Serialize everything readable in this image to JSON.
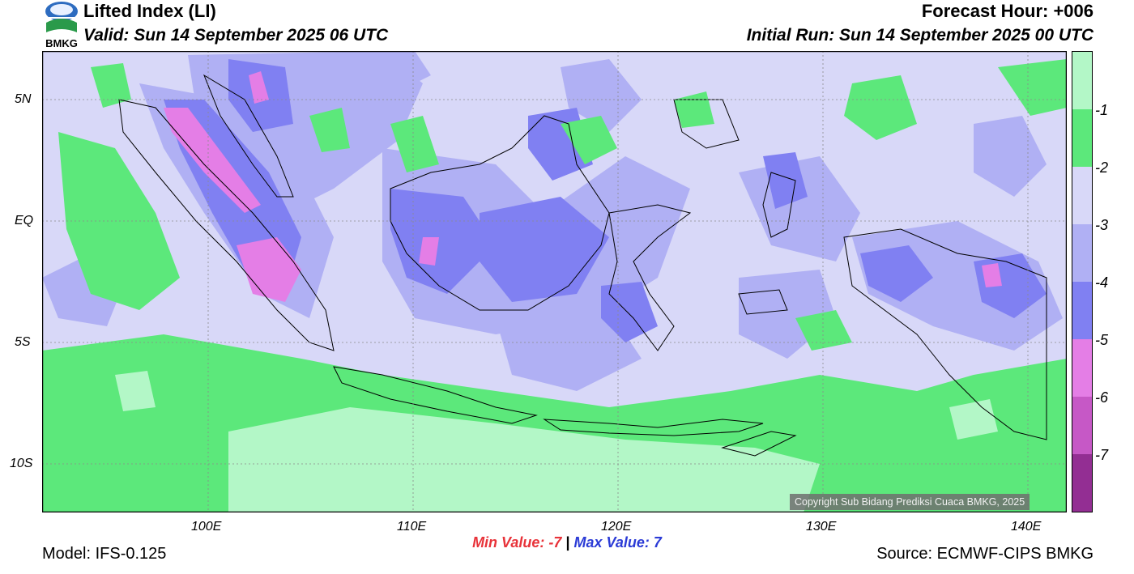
{
  "header": {
    "title": "Lifted Index (LI)",
    "valid": "Valid: Sun 14 September 2025 06 UTC",
    "forecast_hour": "Forecast Hour: +006",
    "initial_run": "Initial Run: Sun 14 September 2025 00 UTC"
  },
  "logo": {
    "text": "BMKG",
    "icon": "bmkg-logo-icon"
  },
  "map": {
    "lat_labels": [
      "5N",
      "EQ",
      "5S",
      "10S"
    ],
    "lon_labels": [
      "100E",
      "110E",
      "120E",
      "130E",
      "140E"
    ],
    "copyright": "Copyright Sub Bidang Prediksi Cuaca BMKG, 2025",
    "colors": {
      "lt_m1": "#b3f7c7",
      "m1_m2": "#5ce87b",
      "m2_m3": "#d8d8f8",
      "m3_m4": "#b0b0f4",
      "m4_m5": "#8080f2",
      "m5_m6": "#e47ee6",
      "m6_m7": "#c658c6",
      "gt_m7": "#932e93"
    }
  },
  "colorbar": {
    "labels": [
      "-1",
      "-2",
      "-3",
      "-4",
      "-5",
      "-6",
      "-7"
    ],
    "colors": [
      "#b3f7c7",
      "#5ce87b",
      "#d8d8f8",
      "#b0b0f4",
      "#8080f2",
      "#e47ee6",
      "#c658c6",
      "#932e93"
    ]
  },
  "stats": {
    "min_label": "Min Value:",
    "min_value": "-7",
    "separator": "|",
    "max_label": "Max Value:",
    "max_value": "7"
  },
  "footer": {
    "model": "Model: IFS-0.125",
    "source": "Source: ECMWF-CIPS BMKG"
  }
}
